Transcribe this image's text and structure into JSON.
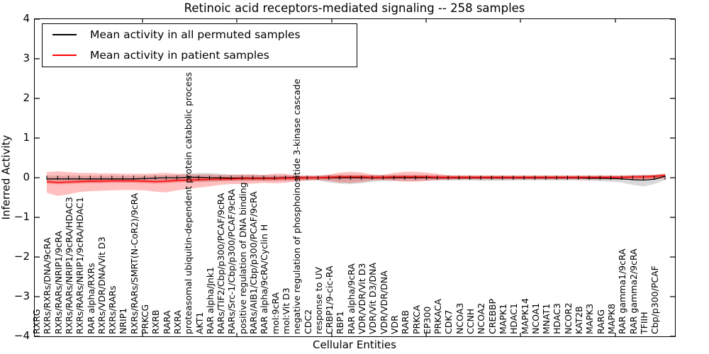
{
  "title": "Retinoic acid receptors-mediated signaling -- 258 samples",
  "axes": {
    "ylabel": "Inferred Activity",
    "xlabel": "Cellular Entities",
    "yticks": [
      "4",
      "3",
      "2",
      "1",
      "0",
      "−1",
      "−2",
      "−3",
      "−4"
    ],
    "ylim": [
      -4,
      4
    ]
  },
  "legend": {
    "items": [
      {
        "label": "Mean activity in all permuted samples",
        "color": "#000000"
      },
      {
        "label": "Mean activity in patient samples",
        "color": "#ff0000"
      }
    ]
  },
  "colors": {
    "permuted_line": "#000000",
    "patient_line": "#ff0000",
    "permuted_band": "rgba(128,128,128,0.30)",
    "patient_band": "rgba(255,0,0,0.25)",
    "patient_band_core": "rgba(225,0,0,0.30)"
  },
  "chart_data": {
    "type": "line",
    "title": "Retinoic acid receptors-mediated signaling -- 258 samples",
    "xlabel": "Cellular Entities",
    "ylabel": "Inferred Activity",
    "ylim": [
      -4,
      4
    ],
    "grid": false,
    "legend_position": "upper left",
    "categories": [
      "RXRG",
      "RXRs/RXRs/DNA/9cRA",
      "RXRs/RARs/NRIP1/9cRA",
      "RXRs/RARs/NRIP1/9cRA/HDAC3",
      "RXRs/RARs/NRIP1/9cRA/HDAC1",
      "RAR alpha/RXRs",
      "RXRs/VDR/DNA/Vit D3",
      "RXRs/RARs",
      "NRIP1",
      "RXRs/RARs/SMRT(N-CoR2)/9cRA",
      "PRKCG",
      "RXRB",
      "RARA",
      "RXRA",
      "proteasomal ubiquitin-dependent protein catabolic process",
      "AKT1",
      "RAR alpha/Jnk1",
      "RARs/TIF2/Cbp/p300/PCAF/9cRA",
      "RARs/Src-1/Cbp/p300/PCAF/9cRA",
      "positive regulation of DNA binding",
      "RARs/AIB1/Cbp/p300/PCAF/9cRA",
      "RAR alpha/9cRA/Cyclin H",
      "mol:9cRA",
      "mol:Vit D3",
      "negative regulation of phosphoinositide 3-kinase cascade",
      "CDC2",
      "response to UV",
      "CRBP1/9-cic-RA",
      "RBP1",
      "RAR alpha/9cRA",
      "VDR/VDR/Vit D3",
      "VDR/Vit D3/DNA",
      "VDR/VDR/DNA",
      "VDR",
      "RARB",
      "PRKCA",
      "EP300",
      "PRKACA",
      "CDK7",
      "NCOA3",
      "CCNH",
      "NCOA2",
      "CREBBP",
      "MAPK1",
      "HDAC1",
      "MAPK14",
      "NCOA1",
      "MNAT1",
      "HDAC3",
      "NCOR2",
      "KAT2B",
      "MAPK3",
      "RARG",
      "MAPK8",
      "RAR gamma1/9cRA",
      "RAR gamma2/9cRA",
      "TFIIH",
      "Cbp/p300/PCAF"
    ],
    "series": [
      {
        "name": "Mean activity in all permuted samples",
        "color": "#000000",
        "values": [
          -0.03,
          -0.03,
          -0.03,
          -0.03,
          -0.03,
          -0.03,
          -0.03,
          -0.03,
          -0.03,
          -0.02,
          -0.01,
          0.0,
          0.0,
          0.01,
          0.01,
          0.0,
          0.0,
          -0.01,
          -0.01,
          -0.01,
          -0.01,
          -0.01,
          0.0,
          0.0,
          0.0,
          0.0,
          0.0,
          0.0,
          0.0,
          0.0,
          0.0,
          0.0,
          0.0,
          0.0,
          0.0,
          0.0,
          0.0,
          0.0,
          0.0,
          0.0,
          0.0,
          0.0,
          0.0,
          0.0,
          0.0,
          0.0,
          0.0,
          0.0,
          0.0,
          0.0,
          -0.01,
          -0.01,
          -0.02,
          -0.03,
          -0.05,
          -0.06,
          -0.04,
          0.04
        ],
        "band_upper": [
          0.05,
          0.05,
          0.05,
          0.05,
          0.05,
          0.05,
          0.05,
          0.05,
          0.05,
          0.05,
          0.06,
          0.06,
          0.07,
          0.1,
          0.12,
          0.12,
          0.1,
          0.08,
          0.08,
          0.08,
          0.07,
          0.06,
          0.06,
          0.05,
          0.05,
          0.05,
          0.06,
          0.06,
          0.06,
          0.06,
          0.06,
          0.06,
          0.06,
          0.06,
          0.06,
          0.06,
          0.05,
          0.05,
          0.05,
          0.05,
          0.05,
          0.05,
          0.05,
          0.05,
          0.05,
          0.05,
          0.05,
          0.05,
          0.05,
          0.05,
          0.05,
          0.05,
          0.05,
          0.05,
          0.06,
          0.07,
          0.07,
          0.08
        ],
        "band_lower": [
          -0.08,
          -0.08,
          -0.08,
          -0.08,
          -0.08,
          -0.07,
          -0.07,
          -0.07,
          -0.07,
          -0.07,
          -0.07,
          -0.07,
          -0.08,
          -0.09,
          -0.1,
          -0.1,
          -0.09,
          -0.08,
          -0.08,
          -0.08,
          -0.08,
          -0.08,
          -0.08,
          -0.07,
          -0.07,
          -0.07,
          -0.12,
          -0.15,
          -0.16,
          -0.14,
          -0.1,
          -0.08,
          -0.08,
          -0.08,
          -0.08,
          -0.08,
          -0.07,
          -0.07,
          -0.07,
          -0.07,
          -0.08,
          -0.08,
          -0.08,
          -0.07,
          -0.07,
          -0.07,
          -0.07,
          -0.07,
          -0.07,
          -0.07,
          -0.08,
          -0.09,
          -0.1,
          -0.12,
          -0.18,
          -0.22,
          -0.16,
          -0.06
        ]
      },
      {
        "name": "Mean activity in patient samples",
        "color": "#ff0000",
        "values": [
          -0.1,
          -0.12,
          -0.11,
          -0.1,
          -0.09,
          -0.09,
          -0.08,
          -0.08,
          -0.08,
          -0.09,
          -0.1,
          -0.09,
          -0.07,
          -0.06,
          -0.05,
          -0.04,
          -0.03,
          -0.03,
          -0.02,
          -0.02,
          -0.02,
          -0.02,
          -0.01,
          -0.01,
          0.0,
          0.0,
          0.01,
          0.02,
          0.02,
          0.02,
          0.01,
          0.01,
          0.02,
          0.02,
          0.02,
          0.02,
          0.01,
          0.01,
          0.01,
          0.01,
          0.01,
          0.01,
          0.01,
          0.01,
          0.01,
          0.01,
          0.01,
          0.01,
          0.01,
          0.01,
          0.01,
          0.01,
          0.01,
          0.01,
          0.02,
          0.02,
          0.03,
          0.06
        ],
        "band_upper": [
          0.14,
          0.16,
          0.14,
          0.12,
          0.12,
          0.11,
          0.11,
          0.1,
          0.1,
          0.1,
          0.11,
          0.12,
          0.1,
          0.09,
          0.08,
          0.08,
          0.07,
          0.07,
          0.08,
          0.08,
          0.07,
          0.1,
          0.1,
          0.06,
          0.05,
          0.05,
          0.08,
          0.13,
          0.15,
          0.13,
          0.08,
          0.07,
          0.12,
          0.15,
          0.15,
          0.13,
          0.1,
          0.06,
          0.05,
          0.05,
          0.04,
          0.04,
          0.04,
          0.04,
          0.04,
          0.04,
          0.04,
          0.04,
          0.04,
          0.04,
          0.04,
          0.04,
          0.04,
          0.04,
          0.05,
          0.06,
          0.07,
          0.09
        ],
        "band_lower": [
          -0.38,
          -0.46,
          -0.42,
          -0.36,
          -0.34,
          -0.33,
          -0.32,
          -0.31,
          -0.31,
          -0.32,
          -0.35,
          -0.37,
          -0.32,
          -0.28,
          -0.25,
          -0.22,
          -0.18,
          -0.16,
          -0.16,
          -0.15,
          -0.13,
          -0.14,
          -0.13,
          -0.09,
          -0.07,
          -0.06,
          -0.08,
          -0.12,
          -0.13,
          -0.11,
          -0.07,
          -0.06,
          -0.08,
          -0.1,
          -0.1,
          -0.08,
          -0.06,
          -0.05,
          -0.04,
          -0.04,
          -0.04,
          -0.04,
          -0.04,
          -0.04,
          -0.04,
          -0.04,
          -0.04,
          -0.04,
          -0.04,
          -0.04,
          -0.04,
          -0.04,
          -0.04,
          -0.04,
          -0.04,
          -0.04,
          -0.04,
          -0.03
        ]
      }
    ]
  }
}
